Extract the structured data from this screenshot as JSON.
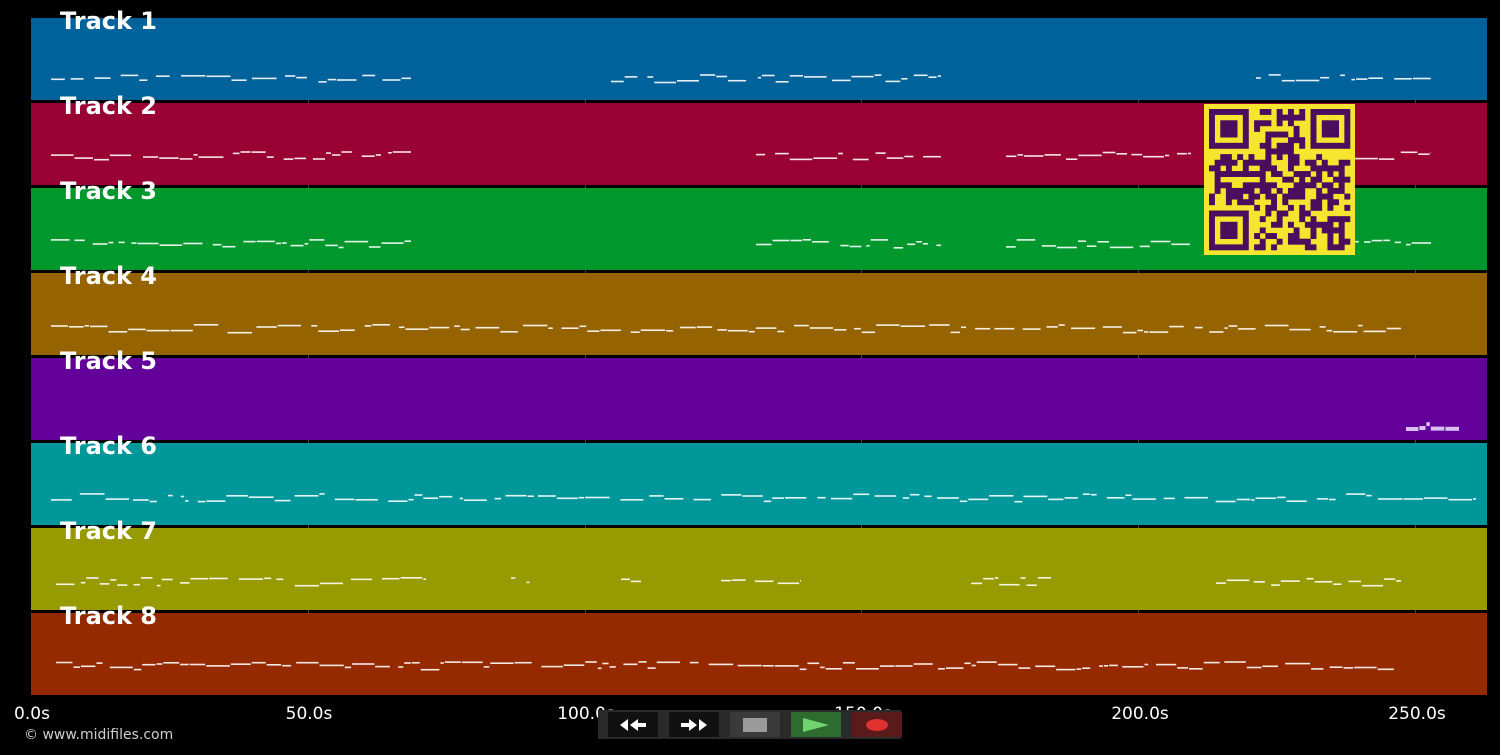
{
  "tracks": [
    {
      "label": "Track 1",
      "color": "#00629a"
    },
    {
      "label": "Track 2",
      "color": "#990033"
    },
    {
      "label": "Track 3",
      "color": "#00972c"
    },
    {
      "label": "Track 4",
      "color": "#956300"
    },
    {
      "label": "Track 5",
      "color": "#63009a"
    },
    {
      "label": "Track 6",
      "color": "#00979a"
    },
    {
      "label": "Track 7",
      "color": "#979a00"
    },
    {
      "label": "Track 8",
      "color": "#952900"
    }
  ],
  "timeline": {
    "unit": "s",
    "max_seconds": 263,
    "ticks": [
      "0.0s",
      "50.0s",
      "100.0s",
      "150.0s",
      "200.0s",
      "250.0s"
    ]
  },
  "copyright": "© www.midifiles.com",
  "qr": {
    "foreground": "#4b0d5e",
    "background": "#f5e52e"
  },
  "transport": {
    "rewind_icon": "rewind-icon",
    "fast_forward_icon": "fast-forward-icon",
    "stop_icon": "stop-icon",
    "play_icon": "play-icon",
    "record_icon": "record-icon",
    "colors": {
      "play": "#2e6b2e",
      "record": "#5a1a1a",
      "stop": "#3a3a3a",
      "nav": "#1a1a1a"
    }
  }
}
